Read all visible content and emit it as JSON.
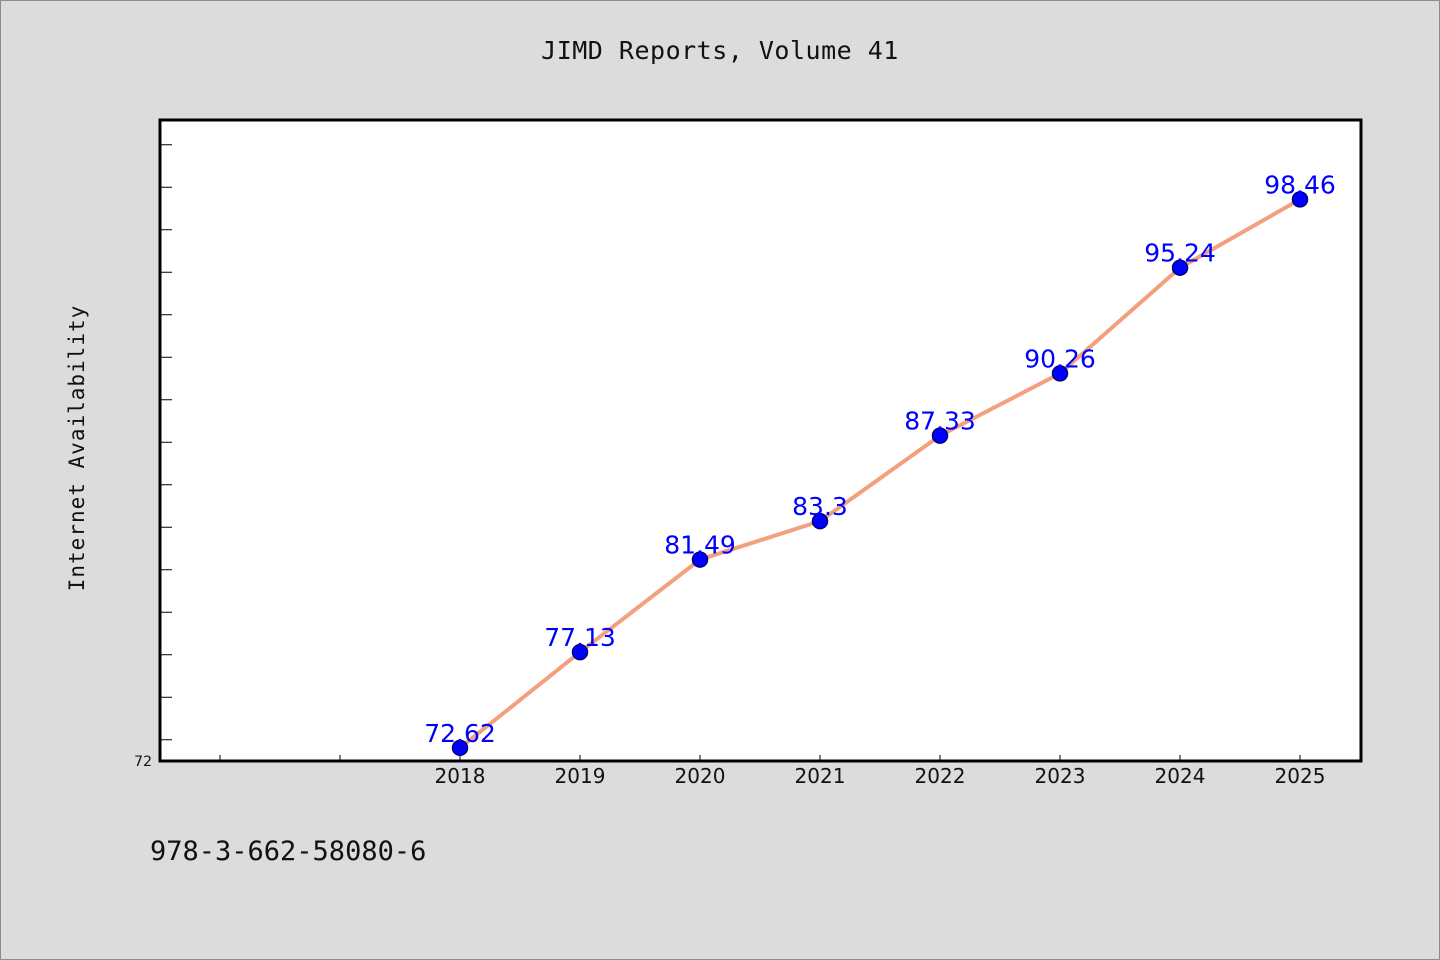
{
  "chart_data": {
    "type": "line",
    "title": "JIMD Reports, Volume 41",
    "ylabel": "Internet Availability",
    "xlabel": "",
    "x": [
      "2018",
      "2019",
      "2020",
      "2021",
      "2022",
      "2023",
      "2024",
      "2025"
    ],
    "series": [
      {
        "values": [
          72.62,
          77.13,
          81.49,
          83.3,
          87.33,
          90.26,
          95.24,
          98.46
        ],
        "data_labels": [
          "72.62",
          "77.13",
          "81.49",
          "83.3",
          "87.33",
          "90.26",
          "95.24",
          "98.46"
        ]
      }
    ],
    "y_tick_labels": [
      "72"
    ],
    "ylim": [
      72,
      102.2
    ],
    "x_slots_before_first": 2,
    "grid": false,
    "legend": "none",
    "colors": {
      "line": "#f4a07f",
      "marker_fill": "#0000ff",
      "marker_edge": "#00007a",
      "data_label": "#0000ff",
      "background": "#dcdcdc",
      "plot_background": "#ffffff"
    }
  },
  "footnote": "978-3-662-58080-6"
}
